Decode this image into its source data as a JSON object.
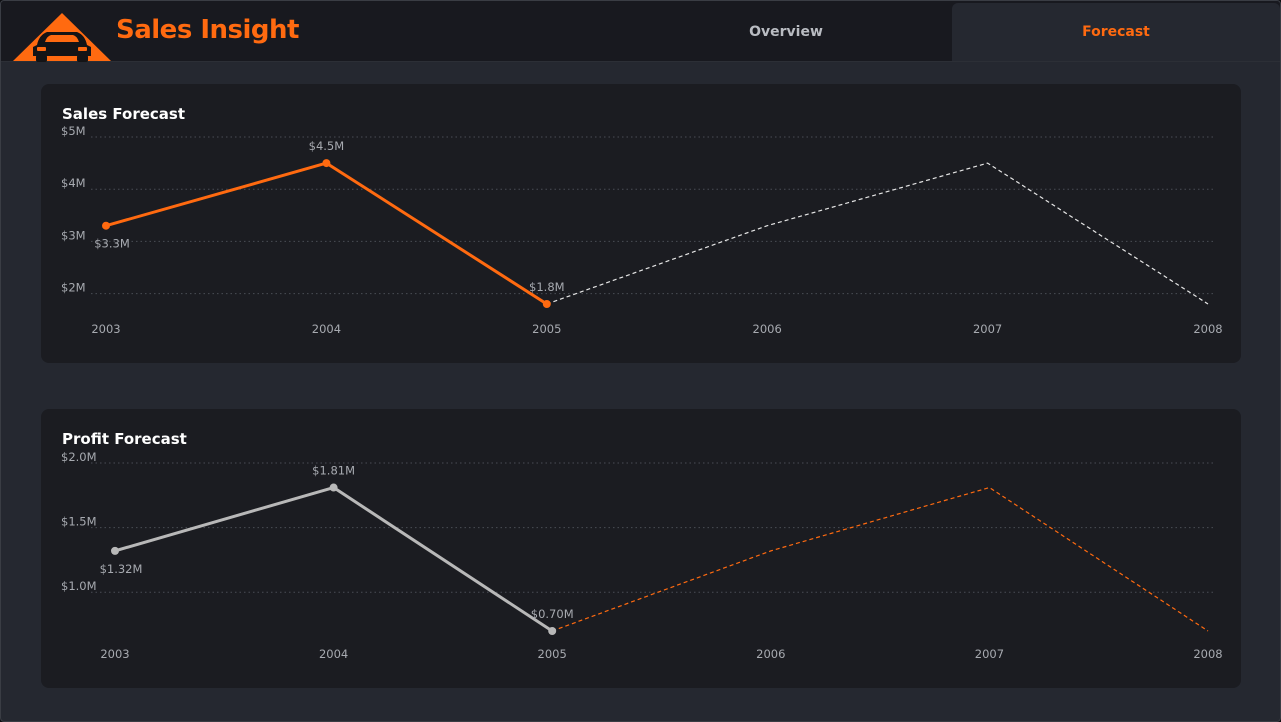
{
  "header": {
    "app_title": "Sales Insight",
    "tabs": [
      {
        "label": "Overview",
        "active": false
      },
      {
        "label": "Forecast",
        "active": true
      }
    ]
  },
  "colors": {
    "accent": "#ff6a10",
    "actual_profit_line": "#b8b8b8",
    "forecast_sales_line": "#e6e6e6",
    "grid": "#4a4d55",
    "background": "#252830",
    "card": "#1b1c21"
  },
  "icons": {
    "logo": "car-warning-icon"
  },
  "chart_data": [
    {
      "type": "line",
      "title": "Sales Forecast",
      "categories": [
        "2003",
        "2004",
        "2005",
        "2006",
        "2007",
        "2008"
      ],
      "y_ticks": [
        2,
        3,
        4,
        5
      ],
      "y_tick_labels": [
        "$2M",
        "$3M",
        "$4M",
        "$5M"
      ],
      "ylim": [
        1.8,
        5
      ],
      "grid": true,
      "series": [
        {
          "style": "actual",
          "x": [
            "2003",
            "2004",
            "2005"
          ],
          "values": [
            3.3,
            4.5,
            1.8
          ],
          "labels": [
            "$3.3M",
            "$4.5M",
            "$1.8M"
          ]
        },
        {
          "style": "forecast",
          "x": [
            "2005",
            "2006",
            "2007",
            "2008"
          ],
          "values": [
            1.8,
            3.3,
            4.5,
            1.8
          ]
        }
      ]
    },
    {
      "type": "line",
      "title": "Profit Forecast",
      "categories": [
        "2003",
        "2004",
        "2005",
        "2006",
        "2007",
        "2008"
      ],
      "y_ticks": [
        1.0,
        1.5,
        2.0
      ],
      "y_tick_labels": [
        "$1.0M",
        "$1.5M",
        "$2.0M"
      ],
      "ylim": [
        0.7,
        2.0
      ],
      "grid": true,
      "series": [
        {
          "style": "actual",
          "x": [
            "2003",
            "2004",
            "2005"
          ],
          "values": [
            1.32,
            1.81,
            0.7
          ],
          "labels": [
            "$1.32M",
            "$1.81M",
            "$0.70M"
          ]
        },
        {
          "style": "forecast",
          "x": [
            "2005",
            "2006",
            "2007",
            "2008"
          ],
          "values": [
            0.7,
            1.32,
            1.81,
            0.7
          ]
        }
      ]
    }
  ]
}
